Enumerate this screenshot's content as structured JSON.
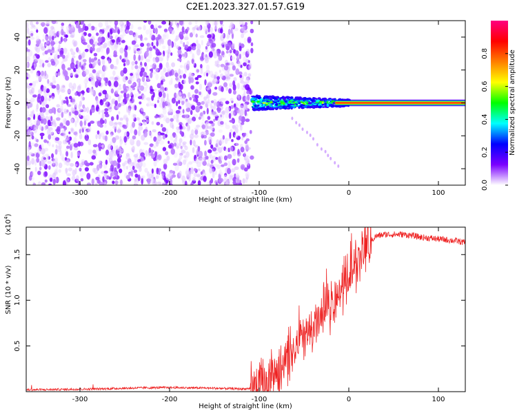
{
  "title": "C2E1.2023.327.01.57.G19",
  "chart_data": [
    {
      "type": "heatmap",
      "xlabel": "Height of straight line (km)",
      "ylabel": "Frequency (Hz)",
      "xlim": [
        -360,
        130
      ],
      "ylim": [
        -50,
        50
      ],
      "xticks": [
        -300,
        -200,
        -100,
        0,
        100
      ],
      "yticks": [
        -40,
        -20,
        0,
        20,
        40
      ],
      "colorbar": {
        "label": "Normalized spectral amplitude",
        "range": [
          0.0,
          1.0
        ],
        "ticks": [
          0.0,
          0.2,
          0.4,
          0.6,
          0.8
        ],
        "colors": [
          "#ffffff",
          "#7a00ff",
          "#0000ff",
          "#00ffff",
          "#00ff00",
          "#ffff00",
          "#ff7f00",
          "#ff0000",
          "#ff0080"
        ]
      },
      "regions": [
        {
          "x": [
            -360,
            -108
          ],
          "freq": [
            -50,
            50
          ],
          "amplitude": [
            0.0,
            0.12
          ],
          "description": "scattered noise"
        },
        {
          "x": [
            -108,
            130
          ],
          "freq": [
            -3,
            3
          ],
          "amplitude": [
            0.2,
            0.85
          ],
          "description": "signal line near 0 Hz"
        }
      ]
    },
    {
      "type": "line",
      "xlabel": "Height of straight line (km)",
      "ylabel": "SNR (10 * v/v)",
      "yscale_label": "(x10",
      "yscale_exp": "4",
      "yscale_close": ")",
      "xlim": [
        -360,
        130
      ],
      "ylim": [
        0.0,
        1.8
      ],
      "xticks": [
        -300,
        -200,
        -100,
        0,
        100
      ],
      "yticks": [
        0.5,
        1.0,
        1.5
      ],
      "color": "#ee2222",
      "series": [
        {
          "x": [
            -360,
            -320,
            -280,
            -240,
            -200,
            -160,
            -120,
            -100,
            -90,
            -80,
            -70,
            -60,
            -50,
            -40,
            -30,
            -20,
            -10,
            0,
            10,
            20,
            30,
            40,
            50,
            60,
            70,
            80,
            90,
            100,
            110,
            120,
            130
          ],
          "values": [
            0.02,
            0.025,
            0.03,
            0.04,
            0.045,
            0.04,
            0.03,
            0.04,
            0.12,
            0.22,
            0.35,
            0.45,
            0.6,
            0.7,
            0.8,
            0.95,
            1.1,
            1.25,
            1.42,
            1.6,
            1.7,
            1.72,
            1.72,
            1.72,
            1.71,
            1.69,
            1.68,
            1.67,
            1.66,
            1.65,
            1.63
          ]
        }
      ]
    }
  ]
}
